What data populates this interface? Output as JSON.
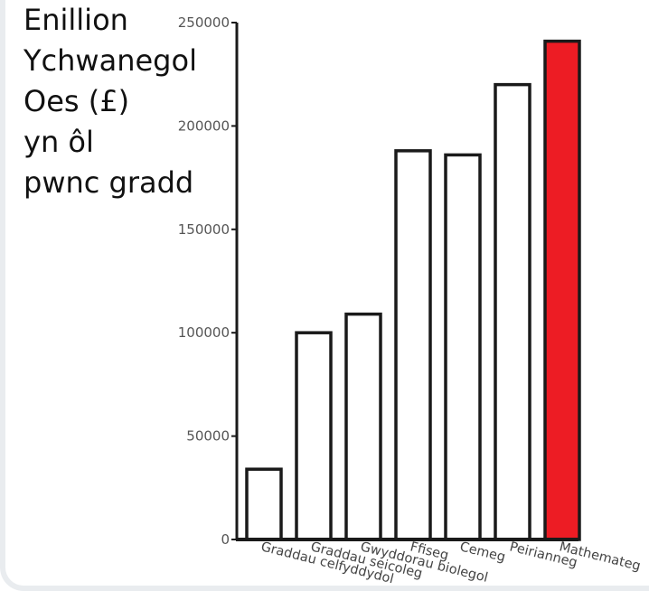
{
  "chart_data": {
    "type": "bar",
    "title_lines": [
      "Enillion",
      "Ychwanegol",
      "Oes (£)",
      "yn ôl",
      "pwnc gradd"
    ],
    "categories": [
      "Graddau celfyddydol",
      "Graddau seicoleg",
      "Gwyddorau biolegol",
      "Ffiseg",
      "Cemeg",
      "Peirianneg",
      "Mathemateg"
    ],
    "values": [
      34000,
      100000,
      109000,
      188000,
      186000,
      220000,
      241000
    ],
    "highlight_index": 6,
    "colors": {
      "bar": "#ffffff",
      "highlight": "#ed1c24",
      "stroke": "#1a1a1a"
    },
    "ylim": [
      0,
      250000
    ],
    "yticks": [
      0,
      50000,
      100000,
      150000,
      200000,
      250000
    ],
    "grid": false,
    "legend": "none"
  }
}
